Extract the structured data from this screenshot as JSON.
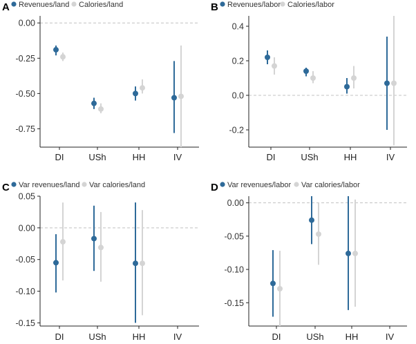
{
  "colors": {
    "primary": "#2e6a99",
    "secondary": "#d4d4d4",
    "zero_line": "#c0c0c0",
    "axis": "#222222"
  },
  "chart_data": [
    {
      "type": "scatter",
      "subtype": "dot-and-whisker",
      "panel": "A",
      "categories": [
        "DI",
        "USh",
        "HH",
        "IV"
      ],
      "ylim": [
        -0.88,
        0.05
      ],
      "yticks": [
        0.0,
        -0.25,
        -0.5,
        -0.75
      ],
      "ytick_labels": [
        "0.00",
        "-0.25",
        "-0.50",
        "-0.75"
      ],
      "zero_line": true,
      "legend": "top-left",
      "series": [
        {
          "name": "Revenues/land",
          "color": "#2e6a99",
          "values": [
            -0.19,
            -0.57,
            -0.5,
            -0.53
          ],
          "lower": [
            -0.23,
            -0.61,
            -0.55,
            -0.78
          ],
          "upper": [
            -0.16,
            -0.53,
            -0.45,
            -0.27
          ]
        },
        {
          "name": "Calories/land",
          "color": "#d4d4d4",
          "values": [
            -0.24,
            -0.61,
            -0.46,
            -0.52
          ],
          "lower": [
            -0.27,
            -0.64,
            -0.5,
            -0.88
          ],
          "upper": [
            -0.21,
            -0.57,
            -0.4,
            -0.16
          ]
        }
      ]
    },
    {
      "type": "scatter",
      "subtype": "dot-and-whisker",
      "panel": "B",
      "categories": [
        "DI",
        "USh",
        "HH",
        "IV"
      ],
      "ylim": [
        -0.3,
        0.46
      ],
      "yticks": [
        0.4,
        0.2,
        0.0,
        -0.2
      ],
      "ytick_labels": [
        "0.4",
        "0.2",
        "0.0",
        "-0.2"
      ],
      "zero_line": true,
      "legend": "top-left",
      "series": [
        {
          "name": "Revenues/labor",
          "color": "#2e6a99",
          "values": [
            0.22,
            0.14,
            0.05,
            0.07
          ],
          "lower": [
            0.18,
            0.11,
            0.01,
            -0.2
          ],
          "upper": [
            0.26,
            0.16,
            0.1,
            0.34
          ]
        },
        {
          "name": "Calories/labor",
          "color": "#d4d4d4",
          "values": [
            0.17,
            0.1,
            0.1,
            0.07
          ],
          "lower": [
            0.12,
            0.07,
            0.04,
            -0.29
          ],
          "upper": [
            0.22,
            0.14,
            0.17,
            0.46
          ]
        }
      ]
    },
    {
      "type": "scatter",
      "subtype": "dot-and-whisker",
      "panel": "C",
      "categories": [
        "DI",
        "USh",
        "HH",
        "IV"
      ],
      "ylim": [
        -0.155,
        0.05
      ],
      "yticks": [
        0.05,
        0.0,
        -0.05,
        -0.1,
        -0.15
      ],
      "ytick_labels": [
        "0.05",
        "0.00",
        "-0.05",
        "-0.10",
        "-0.15"
      ],
      "zero_line": true,
      "legend": "top-left",
      "series": [
        {
          "name": "Var revenues/land",
          "color": "#2e6a99",
          "values": [
            -0.055,
            -0.017,
            -0.056,
            null
          ],
          "lower": [
            -0.102,
            -0.068,
            -0.15,
            null
          ],
          "upper": [
            -0.01,
            0.035,
            0.04,
            null
          ]
        },
        {
          "name": "Var calories/land",
          "color": "#d4d4d4",
          "values": [
            -0.022,
            -0.031,
            -0.056,
            null
          ],
          "lower": [
            -0.083,
            -0.085,
            -0.138,
            null
          ],
          "upper": [
            0.04,
            0.025,
            0.028,
            null
          ]
        }
      ]
    },
    {
      "type": "scatter",
      "subtype": "dot-and-whisker",
      "panel": "D",
      "categories": [
        "DI",
        "USh",
        "HH",
        "IV"
      ],
      "ylim": [
        -0.185,
        0.01
      ],
      "yticks": [
        0.0,
        -0.05,
        -0.1,
        -0.15
      ],
      "ytick_labels": [
        "0.00",
        "-0.05",
        "-0.10",
        "-0.15"
      ],
      "zero_line": true,
      "legend": "top-left",
      "series": [
        {
          "name": "Var revenues/labor",
          "color": "#2e6a99",
          "values": [
            -0.121,
            -0.026,
            -0.076,
            null
          ],
          "lower": [
            -0.171,
            -0.062,
            -0.161,
            null
          ],
          "upper": [
            -0.071,
            0.01,
            0.01,
            null
          ]
        },
        {
          "name": "Var calories/labor",
          "color": "#d4d4d4",
          "values": [
            -0.129,
            -0.047,
            -0.076,
            null
          ],
          "lower": [
            -0.185,
            -0.093,
            -0.156,
            null
          ],
          "upper": [
            -0.072,
            0.0,
            0.005,
            null
          ]
        }
      ]
    }
  ]
}
